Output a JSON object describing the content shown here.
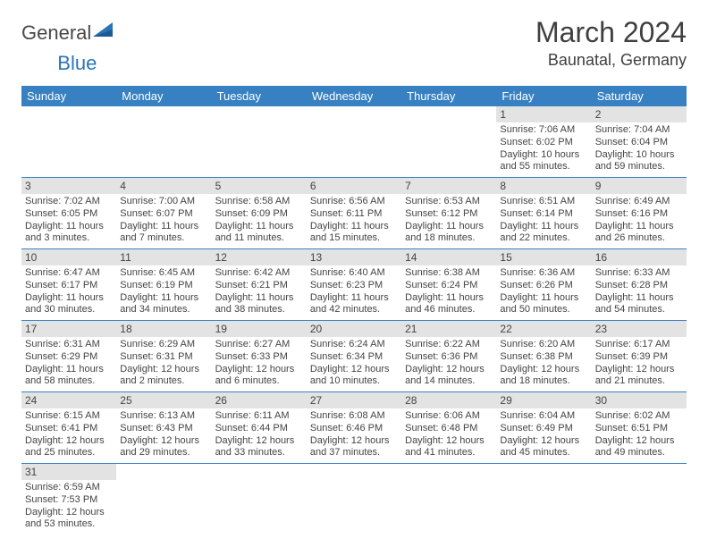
{
  "brand": {
    "part1": "General",
    "part2": "Blue"
  },
  "title": "March 2024",
  "location": "Baunatal, Germany",
  "colors": {
    "header_bg": "#3781c2",
    "header_text": "#ffffff",
    "daynum_bg": "#e3e3e3",
    "row_border": "#3781c2",
    "text": "#444444",
    "brand_dark": "#484848",
    "brand_blue": "#2b74b8"
  },
  "weekdays": [
    "Sunday",
    "Monday",
    "Tuesday",
    "Wednesday",
    "Thursday",
    "Friday",
    "Saturday"
  ],
  "weeks": [
    [
      {
        "empty": true
      },
      {
        "empty": true
      },
      {
        "empty": true
      },
      {
        "empty": true
      },
      {
        "empty": true
      },
      {
        "n": "1",
        "sr": "Sunrise: 7:06 AM",
        "ss": "Sunset: 6:02 PM",
        "d1": "Daylight: 10 hours",
        "d2": "and 55 minutes."
      },
      {
        "n": "2",
        "sr": "Sunrise: 7:04 AM",
        "ss": "Sunset: 6:04 PM",
        "d1": "Daylight: 10 hours",
        "d2": "and 59 minutes."
      }
    ],
    [
      {
        "n": "3",
        "sr": "Sunrise: 7:02 AM",
        "ss": "Sunset: 6:05 PM",
        "d1": "Daylight: 11 hours",
        "d2": "and 3 minutes."
      },
      {
        "n": "4",
        "sr": "Sunrise: 7:00 AM",
        "ss": "Sunset: 6:07 PM",
        "d1": "Daylight: 11 hours",
        "d2": "and 7 minutes."
      },
      {
        "n": "5",
        "sr": "Sunrise: 6:58 AM",
        "ss": "Sunset: 6:09 PM",
        "d1": "Daylight: 11 hours",
        "d2": "and 11 minutes."
      },
      {
        "n": "6",
        "sr": "Sunrise: 6:56 AM",
        "ss": "Sunset: 6:11 PM",
        "d1": "Daylight: 11 hours",
        "d2": "and 15 minutes."
      },
      {
        "n": "7",
        "sr": "Sunrise: 6:53 AM",
        "ss": "Sunset: 6:12 PM",
        "d1": "Daylight: 11 hours",
        "d2": "and 18 minutes."
      },
      {
        "n": "8",
        "sr": "Sunrise: 6:51 AM",
        "ss": "Sunset: 6:14 PM",
        "d1": "Daylight: 11 hours",
        "d2": "and 22 minutes."
      },
      {
        "n": "9",
        "sr": "Sunrise: 6:49 AM",
        "ss": "Sunset: 6:16 PM",
        "d1": "Daylight: 11 hours",
        "d2": "and 26 minutes."
      }
    ],
    [
      {
        "n": "10",
        "sr": "Sunrise: 6:47 AM",
        "ss": "Sunset: 6:17 PM",
        "d1": "Daylight: 11 hours",
        "d2": "and 30 minutes."
      },
      {
        "n": "11",
        "sr": "Sunrise: 6:45 AM",
        "ss": "Sunset: 6:19 PM",
        "d1": "Daylight: 11 hours",
        "d2": "and 34 minutes."
      },
      {
        "n": "12",
        "sr": "Sunrise: 6:42 AM",
        "ss": "Sunset: 6:21 PM",
        "d1": "Daylight: 11 hours",
        "d2": "and 38 minutes."
      },
      {
        "n": "13",
        "sr": "Sunrise: 6:40 AM",
        "ss": "Sunset: 6:23 PM",
        "d1": "Daylight: 11 hours",
        "d2": "and 42 minutes."
      },
      {
        "n": "14",
        "sr": "Sunrise: 6:38 AM",
        "ss": "Sunset: 6:24 PM",
        "d1": "Daylight: 11 hours",
        "d2": "and 46 minutes."
      },
      {
        "n": "15",
        "sr": "Sunrise: 6:36 AM",
        "ss": "Sunset: 6:26 PM",
        "d1": "Daylight: 11 hours",
        "d2": "and 50 minutes."
      },
      {
        "n": "16",
        "sr": "Sunrise: 6:33 AM",
        "ss": "Sunset: 6:28 PM",
        "d1": "Daylight: 11 hours",
        "d2": "and 54 minutes."
      }
    ],
    [
      {
        "n": "17",
        "sr": "Sunrise: 6:31 AM",
        "ss": "Sunset: 6:29 PM",
        "d1": "Daylight: 11 hours",
        "d2": "and 58 minutes."
      },
      {
        "n": "18",
        "sr": "Sunrise: 6:29 AM",
        "ss": "Sunset: 6:31 PM",
        "d1": "Daylight: 12 hours",
        "d2": "and 2 minutes."
      },
      {
        "n": "19",
        "sr": "Sunrise: 6:27 AM",
        "ss": "Sunset: 6:33 PM",
        "d1": "Daylight: 12 hours",
        "d2": "and 6 minutes."
      },
      {
        "n": "20",
        "sr": "Sunrise: 6:24 AM",
        "ss": "Sunset: 6:34 PM",
        "d1": "Daylight: 12 hours",
        "d2": "and 10 minutes."
      },
      {
        "n": "21",
        "sr": "Sunrise: 6:22 AM",
        "ss": "Sunset: 6:36 PM",
        "d1": "Daylight: 12 hours",
        "d2": "and 14 minutes."
      },
      {
        "n": "22",
        "sr": "Sunrise: 6:20 AM",
        "ss": "Sunset: 6:38 PM",
        "d1": "Daylight: 12 hours",
        "d2": "and 18 minutes."
      },
      {
        "n": "23",
        "sr": "Sunrise: 6:17 AM",
        "ss": "Sunset: 6:39 PM",
        "d1": "Daylight: 12 hours",
        "d2": "and 21 minutes."
      }
    ],
    [
      {
        "n": "24",
        "sr": "Sunrise: 6:15 AM",
        "ss": "Sunset: 6:41 PM",
        "d1": "Daylight: 12 hours",
        "d2": "and 25 minutes."
      },
      {
        "n": "25",
        "sr": "Sunrise: 6:13 AM",
        "ss": "Sunset: 6:43 PM",
        "d1": "Daylight: 12 hours",
        "d2": "and 29 minutes."
      },
      {
        "n": "26",
        "sr": "Sunrise: 6:11 AM",
        "ss": "Sunset: 6:44 PM",
        "d1": "Daylight: 12 hours",
        "d2": "and 33 minutes."
      },
      {
        "n": "27",
        "sr": "Sunrise: 6:08 AM",
        "ss": "Sunset: 6:46 PM",
        "d1": "Daylight: 12 hours",
        "d2": "and 37 minutes."
      },
      {
        "n": "28",
        "sr": "Sunrise: 6:06 AM",
        "ss": "Sunset: 6:48 PM",
        "d1": "Daylight: 12 hours",
        "d2": "and 41 minutes."
      },
      {
        "n": "29",
        "sr": "Sunrise: 6:04 AM",
        "ss": "Sunset: 6:49 PM",
        "d1": "Daylight: 12 hours",
        "d2": "and 45 minutes."
      },
      {
        "n": "30",
        "sr": "Sunrise: 6:02 AM",
        "ss": "Sunset: 6:51 PM",
        "d1": "Daylight: 12 hours",
        "d2": "and 49 minutes."
      }
    ],
    [
      {
        "n": "31",
        "sr": "Sunrise: 6:59 AM",
        "ss": "Sunset: 7:53 PM",
        "d1": "Daylight: 12 hours",
        "d2": "and 53 minutes."
      },
      {
        "empty": true
      },
      {
        "empty": true
      },
      {
        "empty": true
      },
      {
        "empty": true
      },
      {
        "empty": true
      },
      {
        "empty": true
      }
    ]
  ]
}
